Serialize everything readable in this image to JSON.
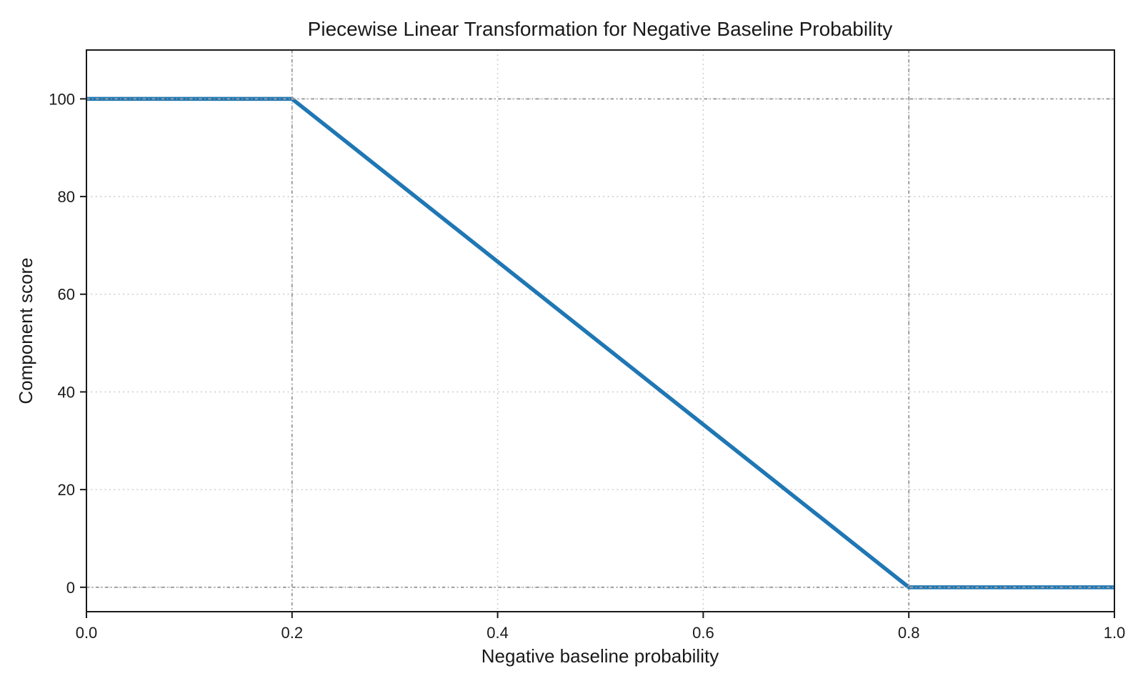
{
  "figure": {
    "background": "#ffffff"
  },
  "chart_data": {
    "type": "line",
    "title": "Piecewise Linear Transformation for Negative Baseline Probability",
    "xlabel": "Negative baseline probability",
    "ylabel": "Component score",
    "xlim": [
      0,
      1
    ],
    "ylim": [
      -5,
      110
    ],
    "xticks": {
      "values": [
        0.0,
        0.2,
        0.4,
        0.6,
        0.8,
        1.0
      ],
      "labels": [
        "0.0",
        "0.2",
        "0.4",
        "0.6",
        "0.8",
        "1.0"
      ]
    },
    "yticks": {
      "values": [
        0,
        20,
        40,
        60,
        80,
        100
      ],
      "labels": [
        "0",
        "20",
        "40",
        "60",
        "80",
        "100"
      ]
    },
    "series": [
      {
        "name": "component-score",
        "color": "#1f77b4",
        "line_width": 5.5,
        "points": [
          [
            0.0,
            100
          ],
          [
            0.2,
            100
          ],
          [
            0.8,
            0
          ],
          [
            1.0,
            0
          ]
        ]
      }
    ],
    "grid": {
      "on": true,
      "style": "dotted",
      "color": "#c9c9c9",
      "x_values": [
        0.2,
        0.4,
        0.6,
        0.8
      ],
      "y_values": [
        0,
        20,
        40,
        60,
        80,
        100
      ]
    },
    "reference_lines": {
      "style": "dash-dot",
      "color": "#9e9e9e",
      "x_values": [
        0.2,
        0.8
      ],
      "y_values": [
        0,
        100
      ]
    },
    "legend": "none",
    "spine_color": "#1a1a1a",
    "tick_color": "#1a1a1a"
  }
}
